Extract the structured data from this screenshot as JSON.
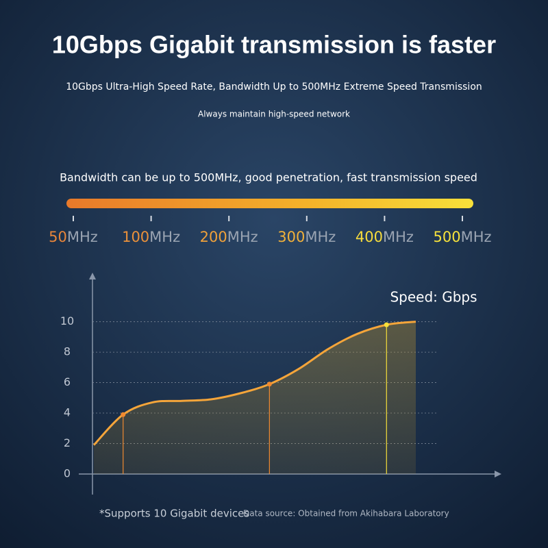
{
  "title": "10Gbps Gigabit transmission is faster",
  "subtitle": "10Gbps Ultra-High Speed Rate, Bandwidth Up to 500MHz Extreme Speed Transmission",
  "tagline": "Always maintain high-speed network",
  "bandwidth": {
    "text": "Bandwidth can be up to 500MHz, good penetration, fast transmission speed",
    "unit": "MHz",
    "labels": [
      "50",
      "100",
      "200",
      "300",
      "400",
      "500"
    ],
    "colors": [
      "#e8853a",
      "#eb913a",
      "#f0a13a",
      "#f2b13a",
      "#f7dc3c",
      "#f7e23c"
    ]
  },
  "chart_data": {
    "type": "line",
    "y_label": "Speed: Gbps",
    "categories": [
      null,
      null,
      null,
      null,
      null,
      null,
      null,
      null,
      null,
      null,
      null,
      null
    ],
    "series": [
      {
        "color": "#f5a53a",
        "values": [
          1.9,
          3.9,
          4.7,
          4.8,
          4.9,
          5.3,
          5.9,
          6.9,
          8.2,
          9.2,
          9.8,
          10.0
        ]
      },
      {
        "color": "#f08a30",
        "values": [
          null,
          3.9,
          null,
          null,
          null,
          null,
          5.9,
          null,
          null,
          null,
          9.8,
          null
        ]
      }
    ],
    "ylim": [
      -1.4,
      13
    ],
    "yticks": [
      0,
      2,
      4,
      6,
      8,
      10
    ],
    "grid": true
  },
  "footnote": "*Supports 10 Gigabit devices",
  "source": "Data source: Obtained from Akihabara Laboratory"
}
